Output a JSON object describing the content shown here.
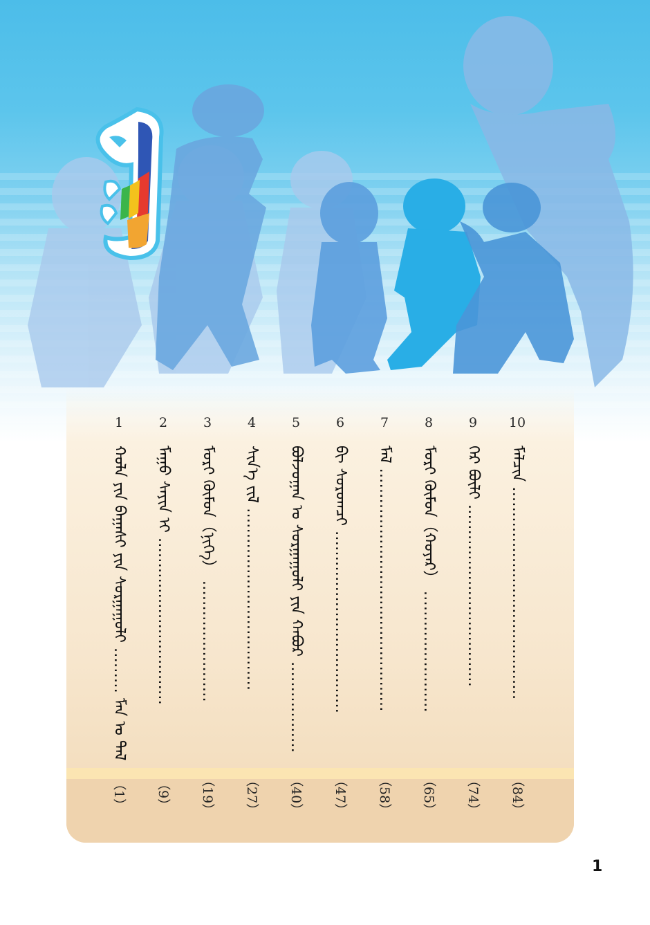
{
  "toc": [
    {
      "num": "1",
      "title": "ᠬᠣᠯᠠ ᠶᠢᠨ ᠪᠠᠭᠠᠰᠢ ᠶᠢᠨ ᠰᠤᠷᠭᠠᠭᠤᠯᠢ ……… ᠮᠠᠨ ᠤ ᠲᠠᠯ",
      "page": "（1）"
    },
    {
      "num": "2",
      "title": "ᠮᠠᠭᠤ ᠰᠠᠶᠢᠨ ᠢ ……………………………",
      "page": "（9）"
    },
    {
      "num": "3",
      "title": "ᠮᠣᠷᠢ ᠬᠦᠮᠦᠨ（ᠨᠢᠭᠡ） ……………………",
      "page": "（19）"
    },
    {
      "num": "4",
      "title": "ᠰᠢᠨ᠎ᠡ ᠵᠢᠯ ………………………………",
      "page": "（27）"
    },
    {
      "num": "5",
      "title": "ᠪᠣᠯᠵᠣᠭᠠᠨ ᠤ ᠰᠤᠷᠭᠠᠭᠤᠯᠢ ᠶᠢᠨ ᠬᠠᠪᠤᠷ ………………",
      "page": "（40）"
    },
    {
      "num": "6",
      "title": "ᠪᠢ ᠰᠤᠷᠤᠭᠴᠢ ………………………………",
      "page": "（47）"
    },
    {
      "num": "7",
      "title": "ᠮᠠᠯ …………………………………………",
      "page": "（58）"
    },
    {
      "num": "8",
      "title": "ᠮᠣᠷᠢ ᠬᠦᠮᠦᠨ（ᠬᠣᠶᠠᠷ） ……………………",
      "page": "（65）"
    },
    {
      "num": "9",
      "title": "ᠭᠡᠷ ᠪᠦᠯᠢ ………………………………",
      "page": "（74）"
    },
    {
      "num": "10",
      "title": "ᠮᠠᠯᠴᠢᠨ ……………………………………",
      "page": "（84）"
    }
  ],
  "page_number": "1",
  "colors": {
    "sky_top": "#4cbde9",
    "silhouette_blue": "#29aee6",
    "silhouette_pale": "#8ab8e6",
    "panel": "#f7e6cd"
  }
}
